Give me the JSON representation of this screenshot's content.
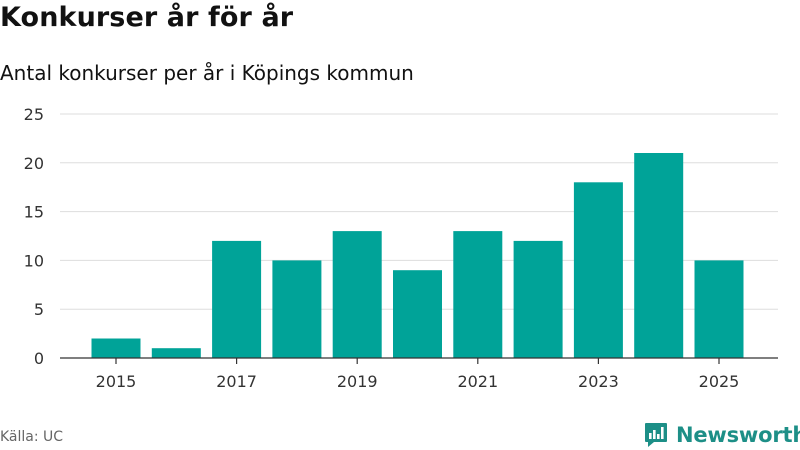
{
  "title": "Konkurser år för år",
  "subtitle": "Antal konkurser per år i Köpings kommun",
  "source": "Källa: UC",
  "brand": "Newsworthy",
  "colors": {
    "bar": "#00a398",
    "grid": "#dddddd",
    "axis": "#333333",
    "brand": "#1d8f87"
  },
  "icons": {
    "brand_logo": "newsworthy-logo-icon"
  },
  "chart_data": {
    "type": "bar",
    "title": "Antal konkurser per år i Köpings kommun",
    "categories": [
      "2015",
      "2016",
      "2017",
      "2018",
      "2019",
      "2020",
      "2021",
      "2022",
      "2023",
      "2024",
      "2025"
    ],
    "values": [
      2,
      1,
      12,
      10,
      13,
      9,
      13,
      12,
      18,
      21,
      10
    ],
    "x_tick_labels": [
      "2015",
      "2017",
      "2019",
      "2021",
      "2023",
      "2025"
    ],
    "y_ticks": [
      0,
      5,
      10,
      15,
      20,
      25
    ],
    "ylim": [
      0,
      25
    ],
    "xlabel": "",
    "ylabel": "",
    "grid": true,
    "legend": "none"
  }
}
